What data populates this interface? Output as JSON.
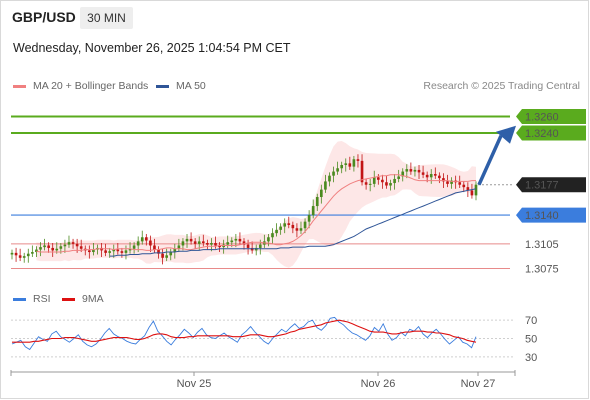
{
  "header": {
    "pair": "GBP/USD",
    "timeframe": "30 MIN",
    "datetime": "Wednesday, November 26, 2025 1:04:54 PM CET",
    "credit": "Research © 2025 Trading Central"
  },
  "legend": {
    "ma20": "MA 20 + Bollinger Bands",
    "ma50": "MA 50",
    "rsi": "RSI",
    "rsi_ma": "9MA"
  },
  "colors": {
    "ma20": "#f08080",
    "ma50": "#2f5597",
    "band_fill": "#fde3e3",
    "green_level": "#5aab1e",
    "blue_level": "#3b7ddd",
    "red_level": "#e88a8a",
    "candle_up": "#4a8a1f",
    "candle_down": "#c21515",
    "arrow": "#2e5fa8",
    "rsi_line": "#3b7ddd",
    "rsi_ma_line": "#dd1111"
  },
  "chart_data": [
    {
      "type": "candlestick",
      "title": "GBP/USD 30 MIN",
      "x_ticks": [
        "Nov 25",
        "Nov 26",
        "Nov 27"
      ],
      "ylim": [
        1.305,
        1.3285
      ],
      "levels": [
        {
          "value": 1.326,
          "label": "1.3260",
          "role": "target"
        },
        {
          "value": 1.324,
          "label": "1.3240",
          "role": "target"
        },
        {
          "value": 1.3177,
          "label": "1.3177",
          "role": "last price"
        },
        {
          "value": 1.314,
          "label": "1.3140",
          "role": "pivot"
        },
        {
          "value": 1.3105,
          "label": "1.3105",
          "role": "support"
        },
        {
          "value": 1.3075,
          "label": "1.3075",
          "role": "support"
        }
      ],
      "closes": [
        1.3094,
        1.3091,
        1.3088,
        1.309,
        1.3093,
        1.3095,
        1.3098,
        1.3101,
        1.3103,
        1.31,
        1.3097,
        1.3099,
        1.3102,
        1.3104,
        1.3107,
        1.3105,
        1.3102,
        1.3099,
        1.3097,
        1.3095,
        1.3098,
        1.31,
        1.3097,
        1.3094,
        1.3096,
        1.3098,
        1.3096,
        1.3094,
        1.3097,
        1.3099,
        1.3103,
        1.3108,
        1.3113,
        1.3109,
        1.3103,
        1.3098,
        1.3093,
        1.3088,
        1.3091,
        1.3095,
        1.3099,
        1.3103,
        1.3108,
        1.3111,
        1.3108,
        1.3105,
        1.3108,
        1.3106,
        1.3104,
        1.3106,
        1.3103,
        1.3101,
        1.3104,
        1.3107,
        1.3109,
        1.3111,
        1.3108,
        1.3104,
        1.31,
        1.3097,
        1.31,
        1.3104,
        1.3108,
        1.3113,
        1.3118,
        1.3122,
        1.3126,
        1.313,
        1.3128,
        1.3124,
        1.3121,
        1.3124,
        1.3132,
        1.314,
        1.3151,
        1.3162,
        1.3171,
        1.3181,
        1.3188,
        1.3193,
        1.3197,
        1.3201,
        1.3203,
        1.3199,
        1.3208,
        1.3206,
        1.318,
        1.3177,
        1.3178,
        1.3186,
        1.3183,
        1.318,
        1.3176,
        1.3179,
        1.3184,
        1.3187,
        1.3193,
        1.3196,
        1.3193,
        1.3195,
        1.3192,
        1.3189,
        1.3186,
        1.319,
        1.3188,
        1.3185,
        1.3181,
        1.3178,
        1.3182,
        1.318,
        1.3177,
        1.3174,
        1.317,
        1.3164,
        1.3177
      ],
      "ma20": [
        1.3096,
        1.3095,
        1.3095,
        1.3095,
        1.3095,
        1.3095,
        1.3095,
        1.3096,
        1.3096,
        1.3097,
        1.3097,
        1.3097,
        1.3098,
        1.3098,
        1.3098,
        1.3099,
        1.3099,
        1.3099,
        1.3099,
        1.3098,
        1.3099,
        1.3099,
        1.3099,
        1.3099,
        1.3098,
        1.3098,
        1.3098,
        1.3097,
        1.3097,
        1.3098,
        1.3098,
        1.3099,
        1.31,
        1.31,
        1.3099,
        1.3099,
        1.3099,
        1.3098,
        1.3098,
        1.3099,
        1.31,
        1.3101,
        1.3102,
        1.3102,
        1.3102,
        1.3103,
        1.3103,
        1.3103,
        1.3103,
        1.3103,
        1.3104,
        1.3105,
        1.3106,
        1.3107,
        1.3107,
        1.3107,
        1.3106,
        1.3106,
        1.3105,
        1.3104,
        1.3104,
        1.3105,
        1.3106,
        1.3108,
        1.3111,
        1.3115,
        1.312,
        1.3126,
        1.3133,
        1.3139,
        1.3145,
        1.3151,
        1.3157,
        1.3163,
        1.3168,
        1.3172,
        1.3175,
        1.3178,
        1.318,
        1.3182,
        1.3183,
        1.3184,
        1.3185,
        1.3186,
        1.3187,
        1.3188,
        1.3188,
        1.3189,
        1.3189,
        1.3189,
        1.3188,
        1.3187,
        1.3185,
        1.3183,
        1.3182,
        1.3182,
        1.3182,
        1.3182,
        1.3182,
        1.3182,
        1.3182,
        1.3182,
        1.3181,
        1.3181,
        1.3181,
        1.3181,
        1.3181,
        1.3182,
        1.3182
      ],
      "ma50": [
        1.309,
        1.309,
        1.3091,
        1.3091,
        1.3091,
        1.3092,
        1.3092,
        1.3092,
        1.3093,
        1.3093,
        1.3093,
        1.3094,
        1.3094,
        1.3094,
        1.3095,
        1.3095,
        1.3095,
        1.3096,
        1.3096,
        1.3096,
        1.3097,
        1.3097,
        1.3097,
        1.3098,
        1.3098,
        1.3098,
        1.3098,
        1.3099,
        1.3099,
        1.3099,
        1.3099,
        1.3099,
        1.3099,
        1.3099,
        1.3099,
        1.3099,
        1.3099,
        1.3099,
        1.3099,
        1.3099,
        1.3099,
        1.3099,
        1.31,
        1.31,
        1.31,
        1.3101,
        1.3101,
        1.3101,
        1.3101,
        1.3102,
        1.3102,
        1.3102,
        1.3102,
        1.3102,
        1.3103,
        1.3104,
        1.3106,
        1.3108,
        1.311,
        1.3112,
        1.3114,
        1.3117,
        1.312,
        1.3123,
        1.3125,
        1.3127,
        1.3129,
        1.3131,
        1.3133,
        1.3135,
        1.3137,
        1.3139,
        1.3141,
        1.3143,
        1.3145,
        1.3147,
        1.3149,
        1.3151,
        1.3153,
        1.3155,
        1.3157,
        1.3159,
        1.3161,
        1.3163,
        1.3165,
        1.3167,
        1.3168,
        1.3169,
        1.317,
        1.3171,
        1.3172
      ],
      "arrow": {
        "from": 1.3177,
        "to": 1.325
      }
    },
    {
      "type": "line",
      "title": "RSI",
      "y_ticks": [
        70,
        50,
        30
      ],
      "ylim": [
        20,
        80
      ],
      "series": [
        {
          "name": "RSI",
          "values": [
            44,
            46,
            48,
            41,
            38,
            45,
            52,
            49,
            47,
            55,
            58,
            52,
            49,
            46,
            50,
            54,
            47,
            43,
            41,
            44,
            49,
            56,
            61,
            55,
            52,
            50,
            47,
            45,
            44,
            49,
            53,
            62,
            69,
            58,
            53,
            47,
            43,
            49,
            54,
            60,
            56,
            51,
            57,
            61,
            54,
            51,
            50,
            53,
            56,
            52,
            49,
            46,
            54,
            58,
            63,
            57,
            52,
            47,
            44,
            50,
            55,
            60,
            57,
            62,
            66,
            61,
            63,
            68,
            70,
            62,
            59,
            64,
            72,
            73,
            68,
            65,
            60,
            56,
            54,
            51,
            48,
            53,
            62,
            58,
            66,
            55,
            48,
            51,
            57,
            53,
            60,
            58,
            63,
            55,
            51,
            56,
            60,
            55,
            49,
            44,
            48,
            52,
            46,
            44,
            40,
            52
          ]
        },
        {
          "name": "9MA",
          "values": [
            46,
            46,
            46,
            46,
            46,
            47,
            47,
            48,
            49,
            50,
            50,
            50,
            51,
            51,
            51,
            50,
            49,
            48,
            47,
            47,
            48,
            49,
            50,
            51,
            51,
            51,
            51,
            50,
            49,
            49,
            50,
            52,
            54,
            55,
            55,
            54,
            52,
            51,
            51,
            51,
            52,
            52,
            53,
            53,
            53,
            53,
            53,
            53,
            53,
            53,
            52,
            52,
            52,
            53,
            54,
            54,
            54,
            53,
            52,
            52,
            53,
            54,
            55,
            57,
            58,
            60,
            61,
            62,
            63,
            64,
            65,
            67,
            68,
            69,
            70,
            69,
            68,
            66,
            64,
            62,
            60,
            58,
            57,
            57,
            57,
            56,
            55,
            55,
            56,
            57,
            57,
            58,
            58,
            58,
            57,
            57,
            56,
            56,
            55,
            54,
            52,
            51,
            50,
            48,
            47,
            46
          ]
        }
      ]
    }
  ]
}
